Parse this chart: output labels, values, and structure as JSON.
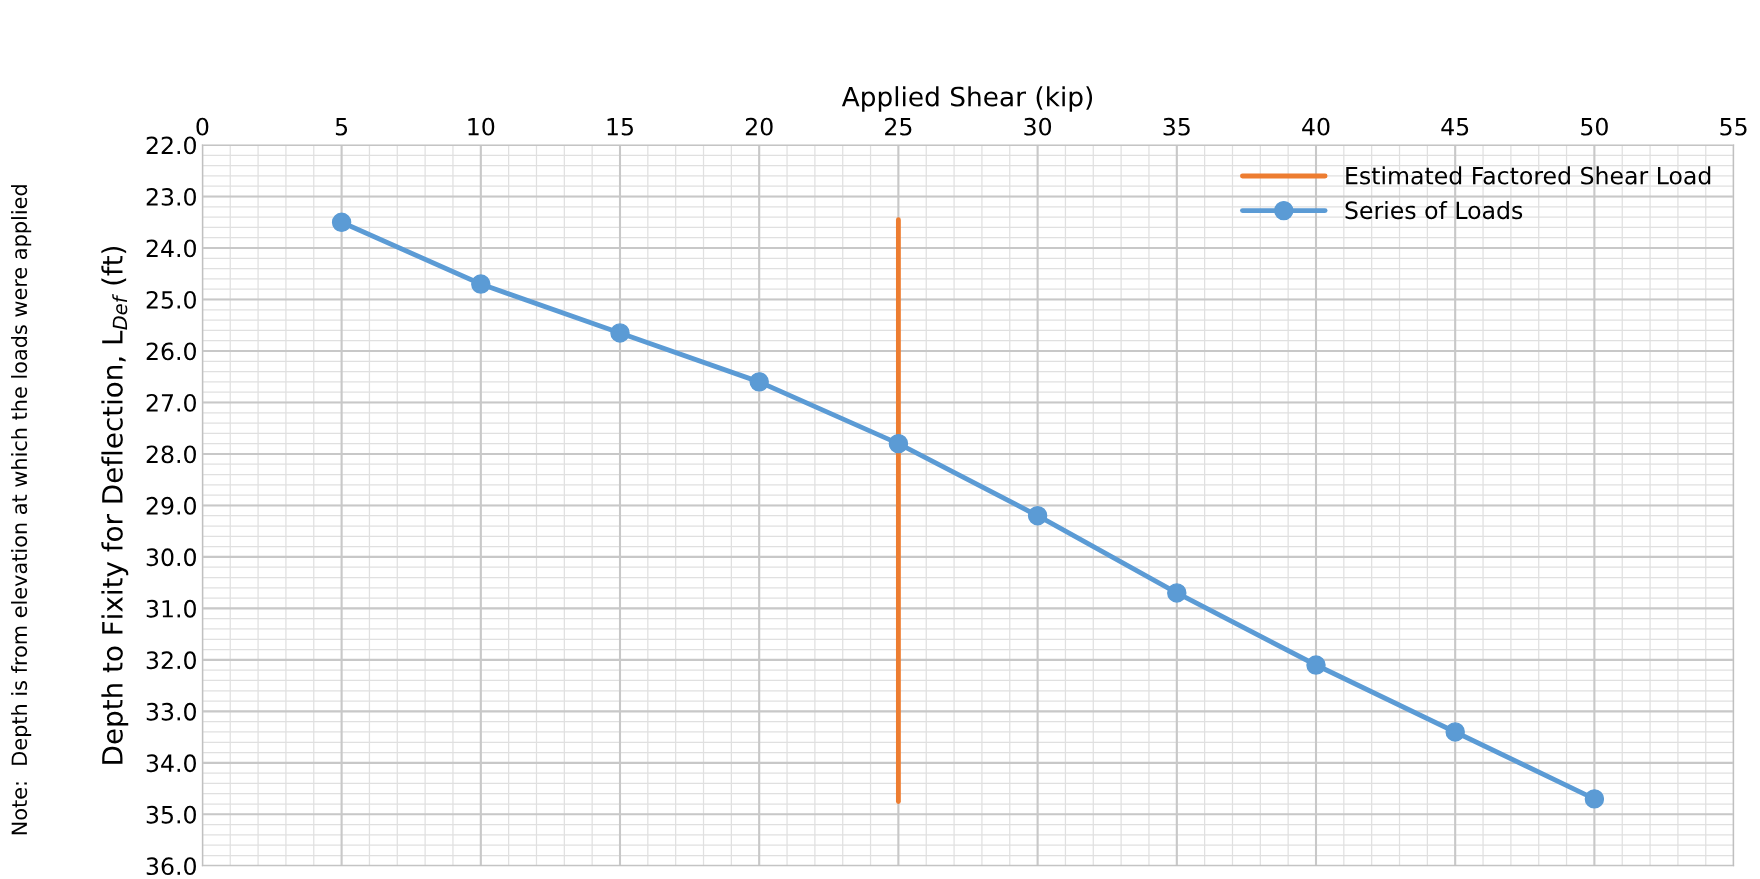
{
  "chart_data": {
    "type": "line",
    "xlabel": "Applied Shear (kip)",
    "ylabel": "Depth to Fixity for Deflection, L$_{Def}$ (ft)",
    "annotations": [
      "Note:  Depth is from elevation at which the loads were applied"
    ],
    "xlim": [
      0,
      55
    ],
    "xticks": [
      0,
      5,
      10,
      15,
      20,
      25,
      30,
      35,
      40,
      45,
      50,
      55
    ],
    "ylim": [
      36,
      22
    ],
    "yticks": [
      {
        "value": 22,
        "label": "22.0"
      },
      {
        "value": 23,
        "label": "23.0"
      },
      {
        "value": 24,
        "label": "24.0"
      },
      {
        "value": 25,
        "label": "25.0"
      },
      {
        "value": 26,
        "label": "26.0"
      },
      {
        "value": 27,
        "label": "27.0"
      },
      {
        "value": 28,
        "label": "28.0"
      },
      {
        "value": 29,
        "label": "29.0"
      },
      {
        "value": 30,
        "label": "30.0"
      },
      {
        "value": 31,
        "label": "31.0"
      },
      {
        "value": 32,
        "label": "32.0"
      },
      {
        "value": 33,
        "label": "33.0"
      },
      {
        "value": 34,
        "label": "34.0"
      },
      {
        "value": 35,
        "label": "35.0"
      },
      {
        "value": 36,
        "label": "36.0"
      }
    ],
    "grid": true,
    "legend": "top right",
    "series": [
      {
        "name": "Estimated Factored Shear Load",
        "color": "#ed7d31",
        "marker": "none",
        "x": [
          25,
          25
        ],
        "values": [
          23.45,
          34.75
        ]
      },
      {
        "name": "Series of Loads",
        "color": "#5b9bd5",
        "marker": "circle",
        "x": [
          5,
          10,
          15,
          20,
          25,
          30,
          35,
          40,
          45,
          50
        ],
        "values": [
          23.5,
          24.7,
          25.65,
          26.6,
          27.8,
          29.2,
          30.7,
          32.1,
          33.4,
          34.7
        ]
      }
    ]
  }
}
